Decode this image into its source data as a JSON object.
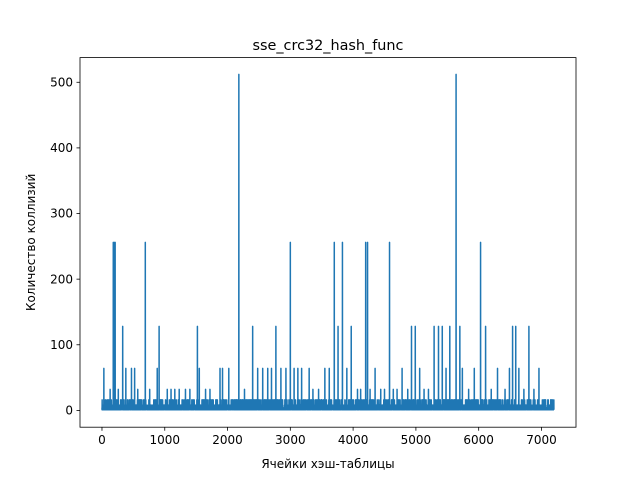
{
  "chart_data": {
    "type": "line",
    "title": "sse_crc32_hash_func",
    "xlabel": "Ячейки хэш-таблицы",
    "ylabel": "Количество коллизий",
    "xlim": [
      -350,
      7550
    ],
    "ylim": [
      -25.6,
      537.6
    ],
    "xticks": [
      0,
      1000,
      2000,
      3000,
      4000,
      5000,
      6000,
      7000
    ],
    "yticks": [
      0,
      100,
      200,
      300,
      400,
      500
    ],
    "grid": false,
    "series": [
      {
        "color": "#1f77b4",
        "n_cells": 7200,
        "baseline_values": [
          1,
          2,
          4,
          8,
          16
        ],
        "spikes": [
          {
            "x": 30,
            "y": 64
          },
          {
            "x": 130,
            "y": 32
          },
          {
            "x": 180,
            "y": 256
          },
          {
            "x": 195,
            "y": 256
          },
          {
            "x": 210,
            "y": 256
          },
          {
            "x": 260,
            "y": 32
          },
          {
            "x": 330,
            "y": 128
          },
          {
            "x": 380,
            "y": 64
          },
          {
            "x": 470,
            "y": 64
          },
          {
            "x": 520,
            "y": 64
          },
          {
            "x": 570,
            "y": 32
          },
          {
            "x": 690,
            "y": 256
          },
          {
            "x": 760,
            "y": 32
          },
          {
            "x": 880,
            "y": 64
          },
          {
            "x": 910,
            "y": 128
          },
          {
            "x": 1040,
            "y": 32
          },
          {
            "x": 1100,
            "y": 32
          },
          {
            "x": 1160,
            "y": 32
          },
          {
            "x": 1230,
            "y": 32
          },
          {
            "x": 1330,
            "y": 32
          },
          {
            "x": 1400,
            "y": 32
          },
          {
            "x": 1520,
            "y": 128
          },
          {
            "x": 1550,
            "y": 64
          },
          {
            "x": 1650,
            "y": 32
          },
          {
            "x": 1720,
            "y": 32
          },
          {
            "x": 1880,
            "y": 64
          },
          {
            "x": 1920,
            "y": 64
          },
          {
            "x": 2020,
            "y": 64
          },
          {
            "x": 2180,
            "y": 512
          },
          {
            "x": 2270,
            "y": 32
          },
          {
            "x": 2400,
            "y": 128
          },
          {
            "x": 2480,
            "y": 64
          },
          {
            "x": 2560,
            "y": 64
          },
          {
            "x": 2640,
            "y": 64
          },
          {
            "x": 2700,
            "y": 64
          },
          {
            "x": 2770,
            "y": 128
          },
          {
            "x": 2850,
            "y": 64
          },
          {
            "x": 2930,
            "y": 64
          },
          {
            "x": 3000,
            "y": 256
          },
          {
            "x": 3060,
            "y": 64
          },
          {
            "x": 3120,
            "y": 64
          },
          {
            "x": 3180,
            "y": 64
          },
          {
            "x": 3300,
            "y": 64
          },
          {
            "x": 3360,
            "y": 32
          },
          {
            "x": 3450,
            "y": 32
          },
          {
            "x": 3550,
            "y": 64
          },
          {
            "x": 3620,
            "y": 64
          },
          {
            "x": 3700,
            "y": 256
          },
          {
            "x": 3760,
            "y": 128
          },
          {
            "x": 3830,
            "y": 256
          },
          {
            "x": 3900,
            "y": 64
          },
          {
            "x": 3970,
            "y": 128
          },
          {
            "x": 4070,
            "y": 32
          },
          {
            "x": 4120,
            "y": 32
          },
          {
            "x": 4200,
            "y": 256
          },
          {
            "x": 4230,
            "y": 256
          },
          {
            "x": 4270,
            "y": 32
          },
          {
            "x": 4350,
            "y": 64
          },
          {
            "x": 4440,
            "y": 32
          },
          {
            "x": 4500,
            "y": 32
          },
          {
            "x": 4580,
            "y": 256
          },
          {
            "x": 4640,
            "y": 32
          },
          {
            "x": 4700,
            "y": 32
          },
          {
            "x": 4780,
            "y": 64
          },
          {
            "x": 4870,
            "y": 32
          },
          {
            "x": 4930,
            "y": 128
          },
          {
            "x": 4990,
            "y": 128
          },
          {
            "x": 5060,
            "y": 64
          },
          {
            "x": 5130,
            "y": 32
          },
          {
            "x": 5200,
            "y": 32
          },
          {
            "x": 5290,
            "y": 128
          },
          {
            "x": 5360,
            "y": 128
          },
          {
            "x": 5420,
            "y": 128
          },
          {
            "x": 5480,
            "y": 64
          },
          {
            "x": 5540,
            "y": 128
          },
          {
            "x": 5640,
            "y": 512
          },
          {
            "x": 5700,
            "y": 128
          },
          {
            "x": 5740,
            "y": 64
          },
          {
            "x": 5840,
            "y": 32
          },
          {
            "x": 5930,
            "y": 64
          },
          {
            "x": 6030,
            "y": 256
          },
          {
            "x": 6110,
            "y": 128
          },
          {
            "x": 6200,
            "y": 32
          },
          {
            "x": 6300,
            "y": 64
          },
          {
            "x": 6420,
            "y": 32
          },
          {
            "x": 6490,
            "y": 64
          },
          {
            "x": 6540,
            "y": 128
          },
          {
            "x": 6590,
            "y": 128
          },
          {
            "x": 6640,
            "y": 64
          },
          {
            "x": 6720,
            "y": 32
          },
          {
            "x": 6800,
            "y": 128
          },
          {
            "x": 6880,
            "y": 32
          },
          {
            "x": 6960,
            "y": 64
          },
          {
            "x": 7060,
            "y": 16
          },
          {
            "x": 7150,
            "y": 16
          }
        ]
      }
    ]
  }
}
